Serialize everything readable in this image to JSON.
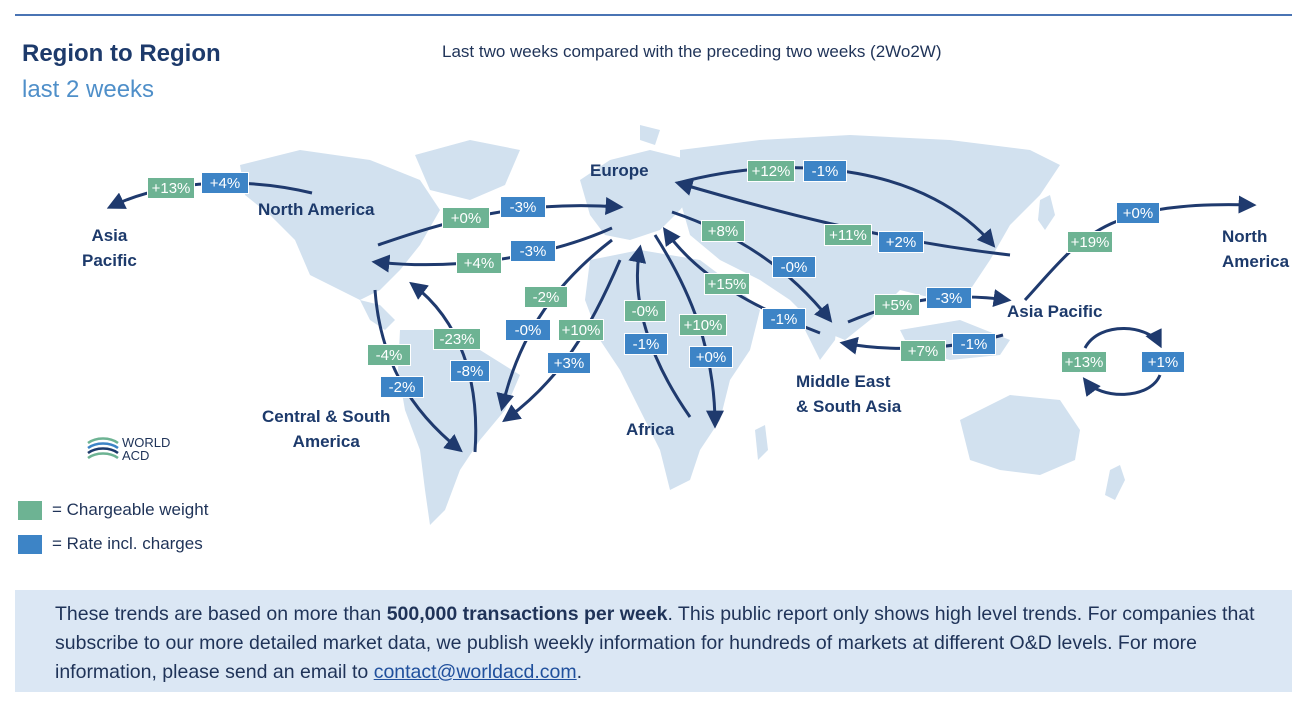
{
  "header": {
    "title": "Region to Region",
    "subtitle": "last 2 weeks",
    "caption": "Last two weeks compared with the preceding two weeks (2Wo2W)"
  },
  "regions": {
    "asia_pacific_left": "Asia\nPacific",
    "north_america": "North America",
    "europe": "Europe",
    "north_america_right": "North\nAmerica",
    "asia_pacific": "Asia Pacific",
    "middle_east": "Middle East\n& South Asia",
    "central_south_america": "Central & South\nAmerica",
    "africa": "Africa"
  },
  "badges": {
    "na_ap_w": "+13%",
    "na_ap_r": "+4%",
    "na_eu_w": "+0%",
    "na_eu_r": "-3%",
    "eu_na_w": "+4%",
    "eu_na_r": "-3%",
    "eu_ap_w": "+12%",
    "eu_ap_r": "-1%",
    "ap_eu_w": "+11%",
    "ap_eu_r": "+2%",
    "eu_me_w": "+8%",
    "eu_me_r": "-0%",
    "me_eu_w": "+15%",
    "me_eu_r": "-1%",
    "me_ap_w": "+5%",
    "me_ap_r": "-3%",
    "ap_me_w": "+7%",
    "ap_me_r": "-1%",
    "ap_na_w": "+19%",
    "ap_na_r": "+0%",
    "ap_ap_w": "+13%",
    "ap_ap_r": "+1%",
    "na_csa_w": "-4%",
    "na_csa_r": "-2%",
    "csa_na_w": "-23%",
    "csa_na_r": "-8%",
    "eu_csa_w": "-2%",
    "eu_csa_r": "-0%",
    "csa_eu_w": "+10%",
    "csa_eu_r": "+3%",
    "af_eu_w": "-0%",
    "af_eu_r": "-1%",
    "eu_af_w": "+10%",
    "eu_af_r": "+0%"
  },
  "legend": {
    "weight_label": "= Chargeable weight",
    "rate_label": "= Rate incl. charges",
    "weight_color": "#6db393",
    "rate_color": "#3d84c6"
  },
  "logo": {
    "line1": "WORLD",
    "line2": "ACD"
  },
  "footer": {
    "text_before": "These trends are based on more than ",
    "text_bold": "500,000 transactions per week",
    "text_after": ". This public report only shows high level trends. For companies that subscribe to our more detailed market data, we publish weekly information for hundreds of markets at different O&D levels. For more information, please send an email to ",
    "email": "contact@worldacd.com",
    "text_end": "."
  }
}
